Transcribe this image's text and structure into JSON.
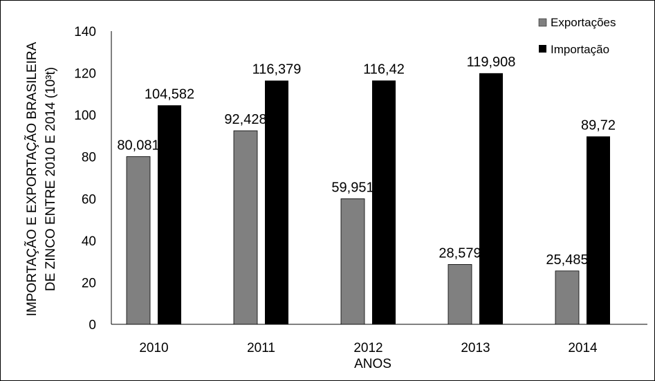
{
  "chart_data": {
    "type": "bar",
    "categories": [
      "2010",
      "2011",
      "2012",
      "2013",
      "2014"
    ],
    "series": [
      {
        "name": "Exportações",
        "values": [
          80.081,
          92.428,
          59.951,
          28.579,
          25.485
        ],
        "labels": [
          "80,081",
          "92,428",
          "59,951",
          "28,579",
          "25,485"
        ],
        "color": "#808080"
      },
      {
        "name": "Importação",
        "values": [
          104.582,
          116.379,
          116.42,
          119.908,
          89.72
        ],
        "labels": [
          "104,582",
          "116,379",
          "116,42",
          "119,908",
          "89,72"
        ],
        "color": "#000000"
      }
    ],
    "xlabel": "ANOS",
    "ylabel_lines": [
      "IMPORTAÇÃO E EXPORTAÇÃO BRASILEIRA",
      "DE ZINCO ENTRE 2010 E 2014 (10³t)"
    ],
    "ylim": [
      0,
      140
    ],
    "yticks": [
      "0",
      "20",
      "40",
      "60",
      "80",
      "100",
      "120",
      "140"
    ],
    "grid": false,
    "legend": "top-right"
  }
}
